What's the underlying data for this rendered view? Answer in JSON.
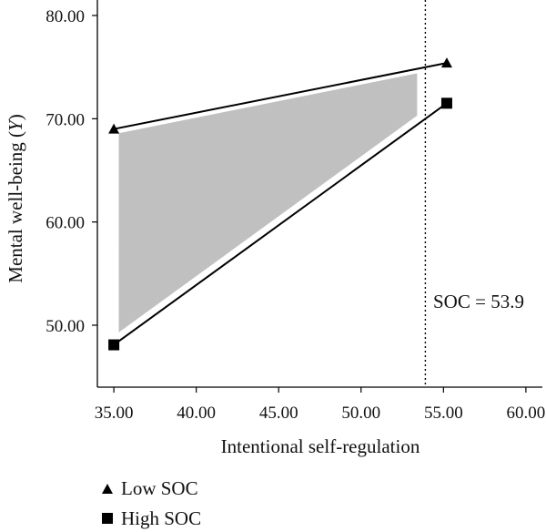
{
  "chart_data": {
    "type": "line",
    "xlabel": "Intentional self-regulation",
    "ylabel_main": "Mental well-being (",
    "ylabel_var": "Y",
    "ylabel_close": ")",
    "xlim": [
      34.0,
      61.0
    ],
    "ylim": [
      44.0,
      81.5
    ],
    "x_ticks": [
      "35.00",
      "40.00",
      "45.00",
      "50.00",
      "55.00",
      "60.00"
    ],
    "x_tick_values": [
      35,
      40,
      45,
      50,
      55,
      60
    ],
    "y_ticks": [
      "50.00",
      "60.00",
      "70.00",
      "80.00"
    ],
    "y_tick_values": [
      50,
      60,
      70,
      80
    ],
    "series": [
      {
        "name": "Low SOC",
        "marker": "triangle",
        "x": [
          35.0,
          55.2
        ],
        "y": [
          69.0,
          75.4
        ]
      },
      {
        "name": "High SOC",
        "marker": "square",
        "x": [
          35.0,
          55.2
        ],
        "y": [
          48.1,
          71.5
        ]
      }
    ],
    "region_of_significance": {
      "x": [
        35.3,
        53.4
      ],
      "upper": [
        68.6,
        74.4
      ],
      "lower": [
        49.3,
        70.3
      ],
      "fill": "#c0c0c0"
    },
    "reference_line": {
      "x": 53.9,
      "style": "dotted",
      "label": "SOC = 53.9"
    },
    "legend_position": "bottom-left",
    "colors": {
      "line": "#000000",
      "shade": "#c0c0c0"
    }
  }
}
